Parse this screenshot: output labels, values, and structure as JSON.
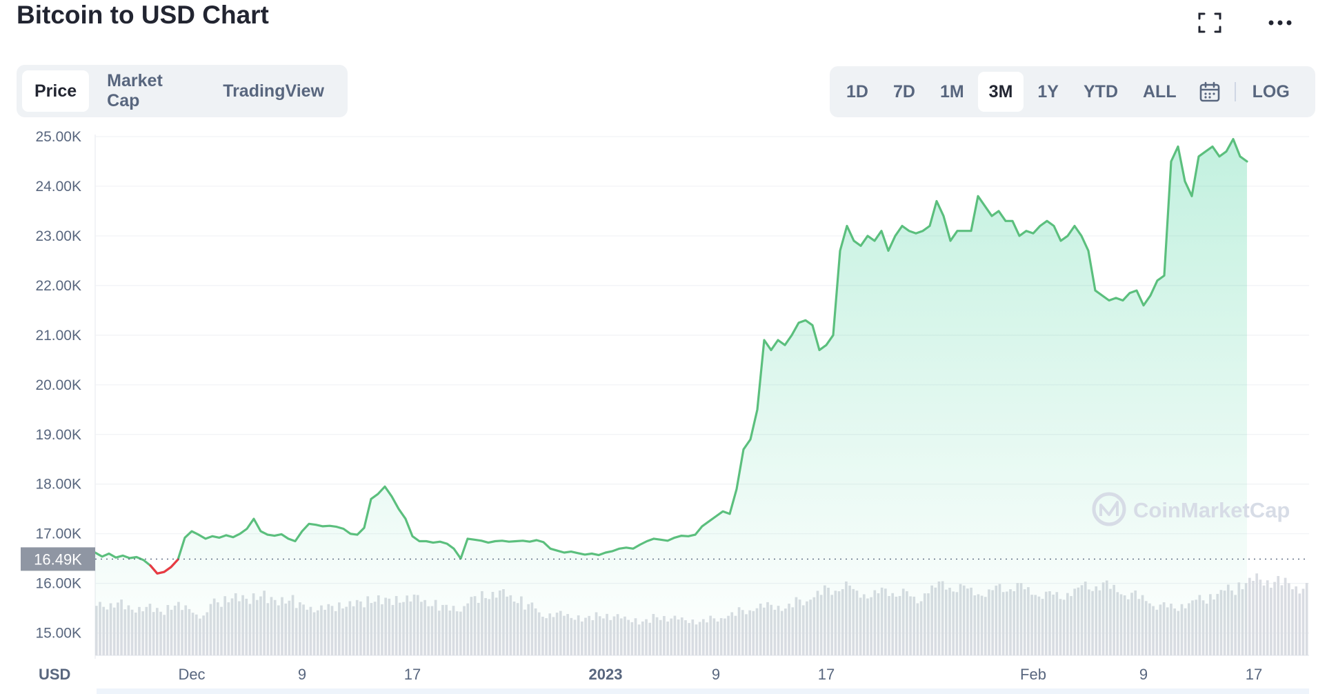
{
  "header": {
    "title": "Bitcoin to USD Chart",
    "fullscreen_icon": "fullscreen-icon",
    "more_icon": "more-horizontal-icon"
  },
  "tabs": [
    {
      "label": "Price",
      "active": true
    },
    {
      "label": "Market Cap",
      "active": false
    },
    {
      "label": "TradingView",
      "active": false
    }
  ],
  "ranges": [
    {
      "label": "1D",
      "active": false
    },
    {
      "label": "7D",
      "active": false
    },
    {
      "label": "1M",
      "active": false
    },
    {
      "label": "3M",
      "active": true
    },
    {
      "label": "1Y",
      "active": false
    },
    {
      "label": "YTD",
      "active": false
    },
    {
      "label": "ALL",
      "active": false
    }
  ],
  "calendar_icon": "calendar-icon",
  "log_label": "LOG",
  "watermark": "CoinMarketCap",
  "colors": {
    "up": "#16c784",
    "line": "#5bbf7d",
    "down": "#ea3943",
    "grid": "#f0f2f5",
    "volume": "#d9dce2"
  },
  "chart_data": {
    "type": "area",
    "currency_label": "USD",
    "current_price_label": "16.49K",
    "current_price": 16490,
    "y_ticks": [
      {
        "label": "25.00K",
        "value": 25000
      },
      {
        "label": "24.00K",
        "value": 24000
      },
      {
        "label": "23.00K",
        "value": 23000
      },
      {
        "label": "22.00K",
        "value": 22000
      },
      {
        "label": "21.00K",
        "value": 21000
      },
      {
        "label": "20.00K",
        "value": 20000
      },
      {
        "label": "19.00K",
        "value": 19000
      },
      {
        "label": "18.00K",
        "value": 18000
      },
      {
        "label": "17.00K",
        "value": 17000
      },
      {
        "label": "16.00K",
        "value": 16000
      },
      {
        "label": "15.00K",
        "value": 15000
      }
    ],
    "ylim": [
      14550,
      25250
    ],
    "x_ticks": [
      {
        "label": "Dec",
        "day": 9,
        "bold": false
      },
      {
        "label": "9",
        "day": 17,
        "bold": false
      },
      {
        "label": "17",
        "day": 25,
        "bold": false
      },
      {
        "label": "2023",
        "day": 39,
        "bold": true
      },
      {
        "label": "9",
        "day": 47,
        "bold": false
      },
      {
        "label": "17",
        "day": 55,
        "bold": false
      },
      {
        "label": "Feb",
        "day": 70,
        "bold": false
      },
      {
        "label": "9",
        "day": 78,
        "bold": false
      },
      {
        "label": "17",
        "day": 86,
        "bold": false
      }
    ],
    "xlim": [
      2,
      90
    ],
    "price": [
      [
        2.0,
        16620
      ],
      [
        2.5,
        16540
      ],
      [
        3.0,
        16600
      ],
      [
        3.5,
        16520
      ],
      [
        4.0,
        16560
      ],
      [
        4.5,
        16510
      ],
      [
        5.0,
        16530
      ],
      [
        5.5,
        16470
      ],
      [
        6.0,
        16360
      ],
      [
        6.5,
        16200
      ],
      [
        7.0,
        16230
      ],
      [
        7.5,
        16330
      ],
      [
        8.0,
        16480
      ],
      [
        8.5,
        16920
      ],
      [
        9.0,
        17050
      ],
      [
        9.5,
        16980
      ],
      [
        10.0,
        16900
      ],
      [
        10.5,
        16950
      ],
      [
        11.0,
        16920
      ],
      [
        11.5,
        16970
      ],
      [
        12.0,
        16930
      ],
      [
        12.5,
        17000
      ],
      [
        13.0,
        17100
      ],
      [
        13.5,
        17300
      ],
      [
        14.0,
        17050
      ],
      [
        14.5,
        16980
      ],
      [
        15.0,
        16960
      ],
      [
        15.5,
        16990
      ],
      [
        16.0,
        16900
      ],
      [
        16.5,
        16850
      ],
      [
        17.0,
        17050
      ],
      [
        17.5,
        17200
      ],
      [
        18.0,
        17180
      ],
      [
        18.5,
        17150
      ],
      [
        19.0,
        17160
      ],
      [
        19.5,
        17140
      ],
      [
        20.0,
        17100
      ],
      [
        20.5,
        17000
      ],
      [
        21.0,
        16980
      ],
      [
        21.5,
        17120
      ],
      [
        22.0,
        17700
      ],
      [
        22.5,
        17800
      ],
      [
        23.0,
        17950
      ],
      [
        23.5,
        17750
      ],
      [
        24.0,
        17500
      ],
      [
        24.5,
        17300
      ],
      [
        25.0,
        16950
      ],
      [
        25.5,
        16850
      ],
      [
        26.0,
        16850
      ],
      [
        26.5,
        16820
      ],
      [
        27.0,
        16840
      ],
      [
        27.5,
        16800
      ],
      [
        28.0,
        16700
      ],
      [
        28.5,
        16500
      ],
      [
        29.0,
        16900
      ],
      [
        29.5,
        16880
      ],
      [
        30.0,
        16860
      ],
      [
        30.5,
        16820
      ],
      [
        31.0,
        16850
      ],
      [
        31.5,
        16860
      ],
      [
        32.0,
        16840
      ],
      [
        32.5,
        16850
      ],
      [
        33.0,
        16860
      ],
      [
        33.5,
        16840
      ],
      [
        34.0,
        16870
      ],
      [
        34.5,
        16830
      ],
      [
        35.0,
        16700
      ],
      [
        35.5,
        16660
      ],
      [
        36.0,
        16620
      ],
      [
        36.5,
        16640
      ],
      [
        37.0,
        16610
      ],
      [
        37.5,
        16580
      ],
      [
        38.0,
        16600
      ],
      [
        38.5,
        16570
      ],
      [
        39.0,
        16620
      ],
      [
        39.5,
        16650
      ],
      [
        40.0,
        16700
      ],
      [
        40.5,
        16720
      ],
      [
        41.0,
        16700
      ],
      [
        41.5,
        16780
      ],
      [
        42.0,
        16850
      ],
      [
        42.5,
        16900
      ],
      [
        43.0,
        16880
      ],
      [
        43.5,
        16860
      ],
      [
        44.0,
        16920
      ],
      [
        44.5,
        16960
      ],
      [
        45.0,
        16950
      ],
      [
        45.5,
        16980
      ],
      [
        46.0,
        17150
      ],
      [
        46.5,
        17250
      ],
      [
        47.0,
        17350
      ],
      [
        47.5,
        17450
      ],
      [
        48.0,
        17400
      ],
      [
        48.5,
        17900
      ],
      [
        49.0,
        18700
      ],
      [
        49.5,
        18900
      ],
      [
        50.0,
        19500
      ],
      [
        50.5,
        20900
      ],
      [
        51.0,
        20700
      ],
      [
        51.5,
        20900
      ],
      [
        52.0,
        20800
      ],
      [
        52.5,
        21000
      ],
      [
        53.0,
        21250
      ],
      [
        53.5,
        21300
      ],
      [
        54.0,
        21200
      ],
      [
        54.5,
        20700
      ],
      [
        55.0,
        20800
      ],
      [
        55.5,
        21000
      ],
      [
        56.0,
        22700
      ],
      [
        56.5,
        23200
      ],
      [
        57.0,
        22900
      ],
      [
        57.5,
        22800
      ],
      [
        58.0,
        23000
      ],
      [
        58.5,
        22900
      ],
      [
        59.0,
        23100
      ],
      [
        59.5,
        22700
      ],
      [
        60.0,
        23000
      ],
      [
        60.5,
        23200
      ],
      [
        61.0,
        23100
      ],
      [
        61.5,
        23050
      ],
      [
        62.0,
        23100
      ],
      [
        62.5,
        23200
      ],
      [
        63.0,
        23700
      ],
      [
        63.5,
        23400
      ],
      [
        64.0,
        22900
      ],
      [
        64.5,
        23100
      ],
      [
        65.0,
        23100
      ],
      [
        65.5,
        23100
      ],
      [
        66.0,
        23800
      ],
      [
        66.5,
        23600
      ],
      [
        67.0,
        23400
      ],
      [
        67.5,
        23500
      ],
      [
        68.0,
        23300
      ],
      [
        68.5,
        23300
      ],
      [
        69.0,
        23000
      ],
      [
        69.5,
        23100
      ],
      [
        70.0,
        23050
      ],
      [
        70.5,
        23200
      ],
      [
        71.0,
        23300
      ],
      [
        71.5,
        23200
      ],
      [
        72.0,
        22900
      ],
      [
        72.5,
        23000
      ],
      [
        73.0,
        23200
      ],
      [
        73.5,
        23000
      ],
      [
        74.0,
        22700
      ],
      [
        74.5,
        21900
      ],
      [
        75.0,
        21800
      ],
      [
        75.5,
        21700
      ],
      [
        76.0,
        21750
      ],
      [
        76.5,
        21700
      ],
      [
        77.0,
        21850
      ],
      [
        77.5,
        21900
      ],
      [
        78.0,
        21600
      ],
      [
        78.5,
        21800
      ],
      [
        79.0,
        22100
      ],
      [
        79.5,
        22200
      ],
      [
        80.0,
        24500
      ],
      [
        80.5,
        24800
      ],
      [
        81.0,
        24100
      ],
      [
        81.5,
        23800
      ],
      [
        82.0,
        24600
      ],
      [
        82.5,
        24700
      ],
      [
        83.0,
        24800
      ],
      [
        83.5,
        24600
      ],
      [
        84.0,
        24700
      ],
      [
        84.5,
        24950
      ],
      [
        85.0,
        24600
      ],
      [
        85.5,
        24500
      ]
    ],
    "down_segment": [
      6.0,
      8.0
    ],
    "volume": [
      62,
      65,
      58,
      60,
      55,
      62,
      58,
      50,
      66,
      72,
      70,
      75,
      68,
      70,
      62,
      58,
      60,
      63,
      65,
      70,
      68,
      70,
      72,
      65,
      60,
      58,
      70,
      75,
      78,
      70,
      62,
      50,
      52,
      48,
      46,
      50,
      48,
      45,
      42,
      48,
      46,
      44,
      42,
      46,
      50,
      56,
      60,
      62,
      60,
      68,
      75,
      82,
      86,
      78,
      76,
      80,
      78,
      70,
      82,
      88,
      84,
      80,
      78,
      84,
      86,
      80,
      76,
      74,
      80,
      86,
      88,
      82,
      76,
      70,
      62,
      60,
      64,
      70,
      76,
      82,
      90,
      95,
      92,
      90,
      84
    ]
  }
}
